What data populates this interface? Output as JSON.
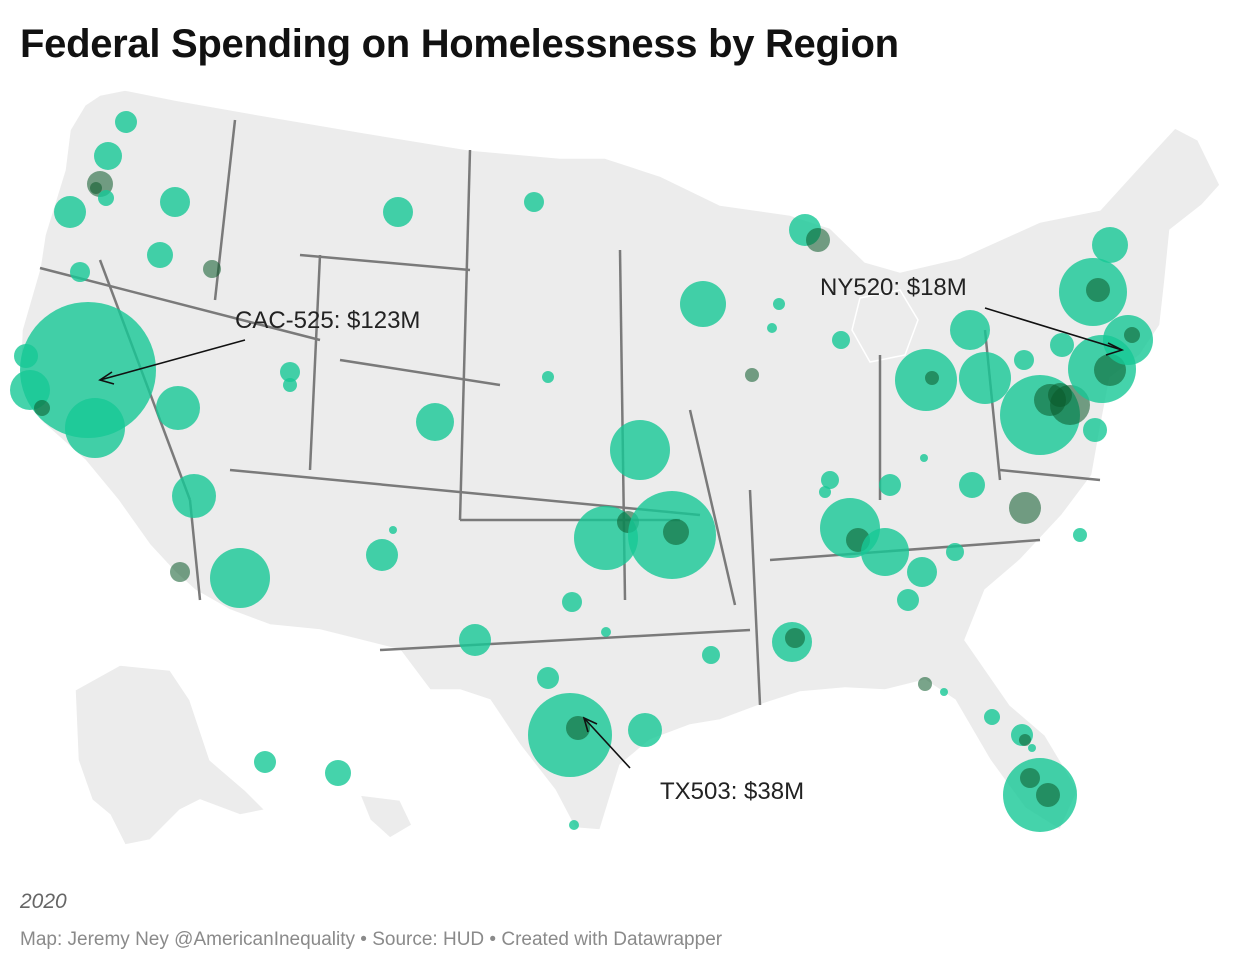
{
  "title": "Federal Spending on Homelessness by Region",
  "year": "2020",
  "credits": "Map: Jeremy Ney @AmericanInequality • Source: HUD • Created with Datawrapper",
  "colors": {
    "bubble": "#16c896",
    "bubble_dark": "#0b5a2a",
    "land": "#ececec",
    "border": "#7a7a7a"
  },
  "annotations": [
    {
      "id": "cac525",
      "text": "CAC-525: $123M"
    },
    {
      "id": "ny520",
      "text": "NY520: $18M"
    },
    {
      "id": "tx503",
      "text": "TX503: $38M"
    }
  ],
  "chart_data": {
    "type": "bubble-map",
    "unit": "USD",
    "highlighted": [
      {
        "code": "CAC-525",
        "value": 123000000,
        "value_label": "$123M"
      },
      {
        "code": "NY520",
        "value": 18000000,
        "value_label": "$18M"
      },
      {
        "code": "TX503",
        "value": 38000000,
        "value_label": "$38M"
      }
    ]
  }
}
